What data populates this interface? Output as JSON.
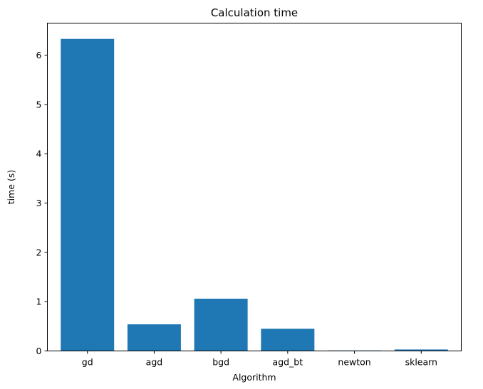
{
  "chart_data": {
    "type": "bar",
    "title": "Calculation time",
    "xlabel": "Algorithm",
    "ylabel": "time (s)",
    "categories": [
      "gd",
      "agd",
      "bgd",
      "agd_bt",
      "newton",
      "sklearn"
    ],
    "values": [
      6.33,
      0.54,
      1.06,
      0.45,
      0.01,
      0.03
    ],
    "ylim": [
      0,
      6.65
    ],
    "yticks": [
      0,
      1,
      2,
      3,
      4,
      5,
      6
    ],
    "bar_color": "#1f77b4",
    "grid": false,
    "legend": false
  }
}
